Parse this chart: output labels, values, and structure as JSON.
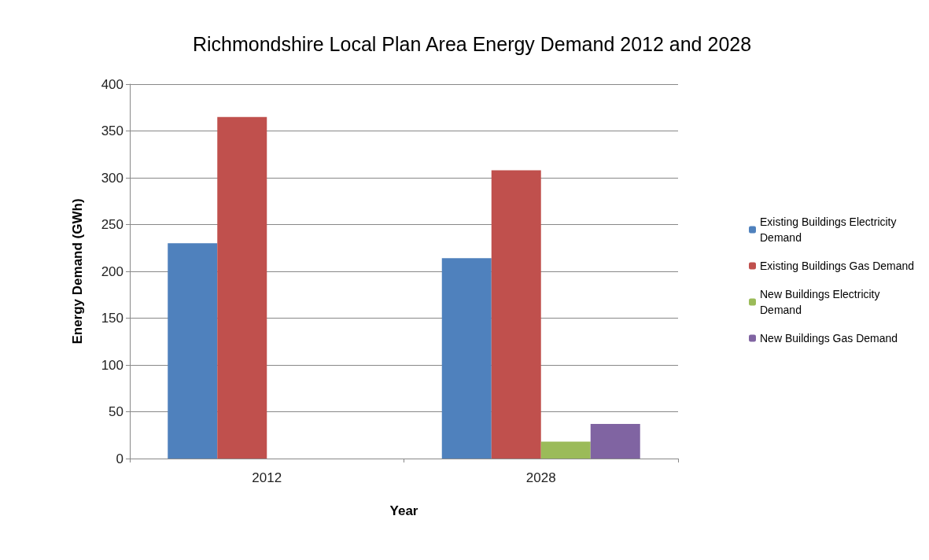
{
  "chart_data": {
    "type": "bar",
    "title": "Richmondshire Local Plan Area Energy Demand 2012 and 2028",
    "xlabel": "Year",
    "ylabel": "Energy Demand (GWh)",
    "categories": [
      "2012",
      "2028"
    ],
    "series": [
      {
        "name": "Existing Buildings Electricity Demand",
        "color": "#4f81bd",
        "values": [
          230,
          214
        ]
      },
      {
        "name": "Existing Buildings Gas Demand",
        "color": "#c0504d",
        "values": [
          365,
          308
        ]
      },
      {
        "name": "New Buildings Electricity Demand",
        "color": "#9bbb59",
        "values": [
          0,
          18
        ]
      },
      {
        "name": "New Buildings Gas Demand",
        "color": "#8064a2",
        "values": [
          0,
          37
        ]
      }
    ],
    "ylim": [
      0,
      400
    ],
    "yticks": [
      0,
      50,
      100,
      150,
      200,
      250,
      300,
      350,
      400
    ],
    "grid": "y",
    "legend": "right"
  }
}
